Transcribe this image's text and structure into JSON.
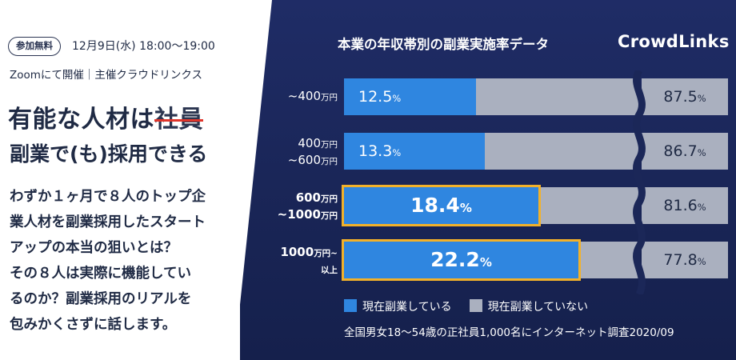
{
  "event": {
    "badge": "参加無料",
    "datetime": "12月9日(水) 18:00〜19:00",
    "venue": "Zoomにて開催｜主催クラウドリンクス",
    "headline_prefix": "有能な人材は",
    "headline_struck": "社員",
    "headline_line2": "副業で(も)採用できる",
    "description_lines": [
      "わずか１ヶ月で８人のトップ企",
      "業人材を副業採用したスタート",
      "アップの本当の狙いとは？",
      "その８人は実際に機能してい",
      "るのか？副業採用のリアルを",
      "包みかくさずに話します。"
    ]
  },
  "brand": {
    "logo": "CrowdLinks"
  },
  "colors": {
    "doing": "#2f86e0",
    "not_doing": "#aab0bf",
    "highlight": "#f2b12a",
    "panel": "#1b2758",
    "strike": "#e0352b"
  },
  "chart_data": {
    "type": "bar",
    "orientation": "horizontal",
    "stacked": true,
    "title": "本業の年収帯別の副業実施率データ",
    "categories": [
      {
        "main": "~400",
        "unit": "万円",
        "line2_main": "",
        "line2_unit": ""
      },
      {
        "main": "400",
        "unit": "万円",
        "line2_main": "~600",
        "line2_unit": "万円"
      },
      {
        "main": "600",
        "unit": "万円",
        "line2_main": "~1000",
        "line2_unit": "万円"
      },
      {
        "main": "1000",
        "unit": "万円~",
        "line2_main": "",
        "line2_unit": "以上"
      }
    ],
    "series": [
      {
        "name": "現在副業している",
        "values": [
          12.5,
          13.3,
          18.4,
          22.2
        ],
        "labels": [
          "12.5",
          "13.3",
          "18.4",
          "22.2"
        ]
      },
      {
        "name": "現在副業していない",
        "values": [
          87.5,
          86.7,
          81.6,
          77.8
        ],
        "labels": [
          "87.5",
          "86.7",
          "81.6",
          "77.8"
        ]
      }
    ],
    "unit": "%",
    "highlighted": [
      2,
      3
    ],
    "legend_position": "bottom-left",
    "source": "全国男女18〜54歳の正社員1,000名にインターネット調査2020/09"
  }
}
